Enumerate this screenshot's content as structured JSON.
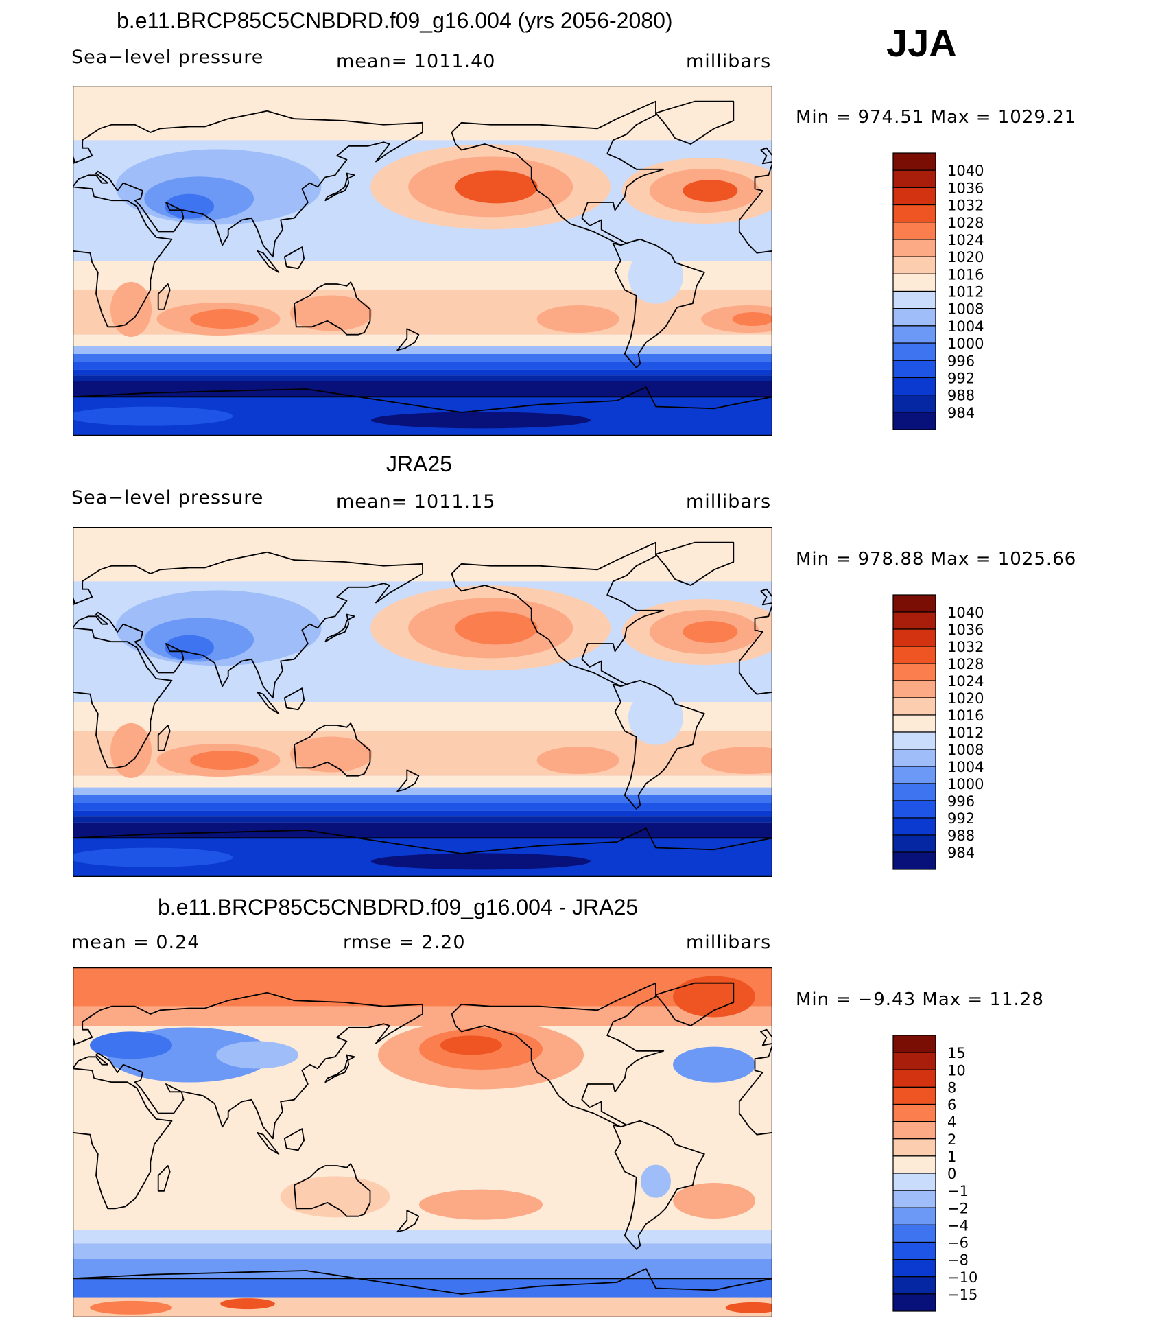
{
  "season": "JJA",
  "colors": {
    "pressure_levels": [
      "#08107a",
      "#0527a3",
      "#0a3ad0",
      "#1f55e6",
      "#3f74f0",
      "#6c99f6",
      "#9fbef9",
      "#c9dcfb",
      "#fdebd8",
      "#fdcdb0",
      "#fca986",
      "#fb7e4f",
      "#ef5522",
      "#d33310",
      "#a81e0a",
      "#7a0e04"
    ],
    "difference_levels": [
      "#08107a",
      "#0527a3",
      "#0a3ad0",
      "#1f55e6",
      "#3f74f0",
      "#6c99f6",
      "#9fbef9",
      "#c9dcfb",
      "#fdebd8",
      "#fdcdb0",
      "#fca986",
      "#fb7e4f",
      "#ef5522",
      "#d33310",
      "#a81e0a",
      "#7a0e04"
    ],
    "land_outline": "#000000"
  },
  "chart_data": [
    {
      "type": "heatmap",
      "title": "b.e11.BRCP85C5CNBDRD.f09_g16.004 (yrs 2056-2080)",
      "left_label": "Sea−level pressure",
      "center_label": "mean=  1011.40",
      "units": "millibars",
      "min_max": "Min  =  974.51  Max  =  1029.21",
      "mean": 1011.4,
      "min": 974.51,
      "max": 1029.21,
      "colorbar_labels": [
        "1040",
        "1036",
        "1032",
        "1028",
        "1024",
        "1020",
        "1016",
        "1012",
        "1008",
        "1004",
        "1000",
        "996",
        "992",
        "988",
        "984"
      ]
    },
    {
      "type": "heatmap",
      "title": "JRA25",
      "left_label": "Sea−level pressure",
      "center_label": "mean=  1011.15",
      "units": "millibars",
      "min_max": "Min  =  978.88  Max  =  1025.66",
      "mean": 1011.15,
      "min": 978.88,
      "max": 1025.66,
      "colorbar_labels": [
        "1040",
        "1036",
        "1032",
        "1028",
        "1024",
        "1020",
        "1016",
        "1012",
        "1008",
        "1004",
        "1000",
        "996",
        "992",
        "988",
        "984"
      ]
    },
    {
      "type": "heatmap",
      "title": "b.e11.BRCP85C5CNBDRD.f09_g16.004 - JRA25",
      "left_label": "mean  =      0.24",
      "center_label": "rmse  =      2.20",
      "units": "millibars",
      "min_max": "Min  =    −9.43  Max  =    11.28",
      "mean": 0.24,
      "rmse": 2.2,
      "min": -9.43,
      "max": 11.28,
      "colorbar_labels": [
        "15",
        "10",
        "8",
        "6",
        "4",
        "2",
        "1",
        "0",
        "−1",
        "−2",
        "−4",
        "−6",
        "−8",
        "−10",
        "−15"
      ]
    }
  ]
}
